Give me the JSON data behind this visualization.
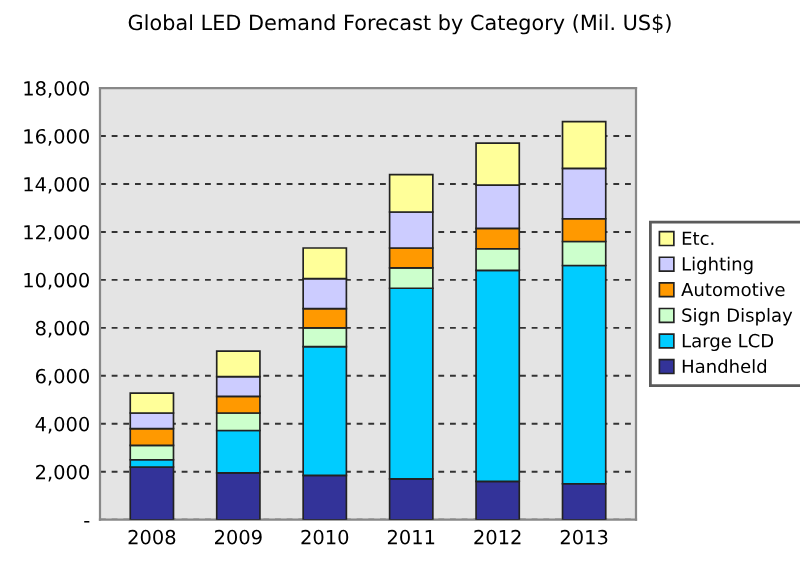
{
  "chart_data": {
    "type": "bar",
    "stacked": true,
    "title": "Global LED Demand Forecast by Category (Mil. US$)",
    "categories": [
      "2008",
      "2009",
      "2010",
      "2011",
      "2012",
      "2013"
    ],
    "series": [
      {
        "name": "Handheld",
        "color": "#333399",
        "values": [
          2200,
          1950,
          1850,
          1700,
          1600,
          1500
        ]
      },
      {
        "name": "Large LCD",
        "color": "#00ccff",
        "values": [
          300,
          1770,
          5370,
          7950,
          8800,
          9100
        ]
      },
      {
        "name": "Sign Display",
        "color": "#ccffcc",
        "values": [
          600,
          730,
          780,
          850,
          900,
          1000
        ]
      },
      {
        "name": "Automotive",
        "color": "#ff9900",
        "values": [
          700,
          690,
          800,
          830,
          850,
          950
        ]
      },
      {
        "name": "Lighting",
        "color": "#ccccff",
        "values": [
          650,
          830,
          1250,
          1500,
          1800,
          2100
        ]
      },
      {
        "name": "Etc.",
        "color": "#ffff99",
        "values": [
          830,
          1060,
          1280,
          1560,
          1750,
          1950
        ]
      }
    ],
    "ylim": [
      0,
      18000
    ],
    "yticks": [
      {
        "value": 0,
        "label": "-"
      },
      {
        "value": 2000,
        "label": "2,000"
      },
      {
        "value": 4000,
        "label": "4,000"
      },
      {
        "value": 6000,
        "label": "6,000"
      },
      {
        "value": 8000,
        "label": "8,000"
      },
      {
        "value": 10000,
        "label": "10,000"
      },
      {
        "value": 12000,
        "label": "12,000"
      },
      {
        "value": 14000,
        "label": "14,000"
      },
      {
        "value": 16000,
        "label": "16,000"
      },
      {
        "value": 18000,
        "label": "18,000"
      }
    ],
    "grid": "y",
    "legend": "right"
  }
}
